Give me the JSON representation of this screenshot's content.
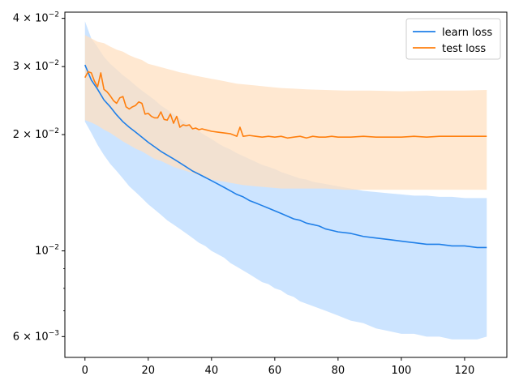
{
  "chart_data": {
    "type": "line",
    "title": "",
    "xlabel": "",
    "ylabel": "",
    "yscale": "log",
    "xlim": [
      -6.35,
      133.35
    ],
    "ylim": [
      0.0053,
      0.0415
    ],
    "xticks": [
      0,
      20,
      40,
      60,
      80,
      100,
      120
    ],
    "xtick_labels": [
      "0",
      "20",
      "40",
      "60",
      "80",
      "100",
      "120"
    ],
    "yticks": [
      {
        "value": 0.04,
        "mantissa": "4",
        "base": "10",
        "exp": "-2"
      },
      {
        "value": 0.03,
        "mantissa": "3",
        "base": "10",
        "exp": "-2"
      },
      {
        "value": 0.02,
        "mantissa": "2",
        "base": "10",
        "exp": "-2"
      },
      {
        "value": 0.01,
        "mantissa": "",
        "base": "10",
        "exp": "-2"
      },
      {
        "value": 0.006,
        "mantissa": "6",
        "base": "10",
        "exp": "-3"
      }
    ],
    "grid": false,
    "legend": {
      "placement": "top-right"
    },
    "series": [
      {
        "name": "learn loss",
        "color": "#1f7fe8",
        "band_color": "#cce4ff",
        "points": [
          [
            0,
            0.0303
          ],
          [
            2,
            0.0277
          ],
          [
            4,
            0.0262
          ],
          [
            6,
            0.0246
          ],
          [
            8,
            0.0236
          ],
          [
            10,
            0.0225
          ],
          [
            12,
            0.0216
          ],
          [
            14,
            0.0209
          ],
          [
            16,
            0.0203
          ],
          [
            18,
            0.0197
          ],
          [
            20,
            0.0191
          ],
          [
            22,
            0.0186
          ],
          [
            24,
            0.0181
          ],
          [
            26,
            0.0177
          ],
          [
            28,
            0.0173
          ],
          [
            30,
            0.0169
          ],
          [
            32,
            0.0165
          ],
          [
            34,
            0.0161
          ],
          [
            36,
            0.0158
          ],
          [
            38,
            0.0155
          ],
          [
            40,
            0.0152
          ],
          [
            42,
            0.0149
          ],
          [
            44,
            0.0146
          ],
          [
            46,
            0.0143
          ],
          [
            48,
            0.014
          ],
          [
            50,
            0.0138
          ],
          [
            52,
            0.0135
          ],
          [
            54,
            0.0133
          ],
          [
            56,
            0.0131
          ],
          [
            58,
            0.0129
          ],
          [
            60,
            0.0127
          ],
          [
            62,
            0.0125
          ],
          [
            64,
            0.0123
          ],
          [
            66,
            0.0121
          ],
          [
            68,
            0.012
          ],
          [
            70,
            0.0118
          ],
          [
            72,
            0.0117
          ],
          [
            74,
            0.0116
          ],
          [
            76,
            0.0114
          ],
          [
            78,
            0.0113
          ],
          [
            80,
            0.0112
          ],
          [
            84,
            0.0111
          ],
          [
            88,
            0.0109
          ],
          [
            92,
            0.0108
          ],
          [
            96,
            0.0107
          ],
          [
            100,
            0.0106
          ],
          [
            104,
            0.0105
          ],
          [
            108,
            0.0104
          ],
          [
            112,
            0.0104
          ],
          [
            116,
            0.0103
          ],
          [
            120,
            0.0103
          ],
          [
            124,
            0.0102
          ],
          [
            127,
            0.0102
          ]
        ],
        "upper": [
          [
            0,
            0.0393
          ],
          [
            2,
            0.0355
          ],
          [
            4,
            0.0337
          ],
          [
            6,
            0.0318
          ],
          [
            8,
            0.0305
          ],
          [
            10,
            0.0295
          ],
          [
            12,
            0.0285
          ],
          [
            14,
            0.0277
          ],
          [
            16,
            0.0268
          ],
          [
            18,
            0.026
          ],
          [
            20,
            0.0253
          ],
          [
            22,
            0.0246
          ],
          [
            24,
            0.0238
          ],
          [
            26,
            0.0232
          ],
          [
            28,
            0.0226
          ],
          [
            30,
            0.022
          ],
          [
            32,
            0.0214
          ],
          [
            34,
            0.0209
          ],
          [
            36,
            0.0204
          ],
          [
            38,
            0.0199
          ],
          [
            40,
            0.0195
          ],
          [
            42,
            0.019
          ],
          [
            44,
            0.0186
          ],
          [
            46,
            0.0183
          ],
          [
            48,
            0.0179
          ],
          [
            50,
            0.0176
          ],
          [
            52,
            0.0173
          ],
          [
            54,
            0.017
          ],
          [
            56,
            0.0167
          ],
          [
            58,
            0.0165
          ],
          [
            60,
            0.0163
          ],
          [
            62,
            0.016
          ],
          [
            64,
            0.0158
          ],
          [
            66,
            0.0156
          ],
          [
            68,
            0.0154
          ],
          [
            70,
            0.0153
          ],
          [
            72,
            0.0151
          ],
          [
            74,
            0.015
          ],
          [
            76,
            0.0149
          ],
          [
            78,
            0.0148
          ],
          [
            80,
            0.0147
          ],
          [
            84,
            0.0145
          ],
          [
            88,
            0.0143
          ],
          [
            92,
            0.0142
          ],
          [
            96,
            0.0141
          ],
          [
            100,
            0.014
          ],
          [
            104,
            0.0139
          ],
          [
            108,
            0.0139
          ],
          [
            112,
            0.0138
          ],
          [
            116,
            0.0138
          ],
          [
            120,
            0.0137
          ],
          [
            124,
            0.0137
          ],
          [
            127,
            0.0137
          ]
        ],
        "lower": [
          [
            0,
            0.0216
          ],
          [
            2,
            0.0202
          ],
          [
            4,
            0.0188
          ],
          [
            6,
            0.0177
          ],
          [
            8,
            0.0168
          ],
          [
            10,
            0.0161
          ],
          [
            12,
            0.0154
          ],
          [
            14,
            0.0147
          ],
          [
            16,
            0.0142
          ],
          [
            18,
            0.0137
          ],
          [
            20,
            0.0132
          ],
          [
            22,
            0.0128
          ],
          [
            24,
            0.0124
          ],
          [
            26,
            0.012
          ],
          [
            28,
            0.0117
          ],
          [
            30,
            0.0114
          ],
          [
            32,
            0.0111
          ],
          [
            34,
            0.0108
          ],
          [
            36,
            0.0105
          ],
          [
            38,
            0.0103
          ],
          [
            40,
            0.01
          ],
          [
            42,
            0.0098
          ],
          [
            44,
            0.0096
          ],
          [
            46,
            0.0093
          ],
          [
            48,
            0.0091
          ],
          [
            50,
            0.0089
          ],
          [
            52,
            0.0087
          ],
          [
            54,
            0.0085
          ],
          [
            56,
            0.0083
          ],
          [
            58,
            0.0082
          ],
          [
            60,
            0.008
          ],
          [
            62,
            0.0079
          ],
          [
            64,
            0.0077
          ],
          [
            66,
            0.0076
          ],
          [
            68,
            0.0074
          ],
          [
            70,
            0.0073
          ],
          [
            72,
            0.0072
          ],
          [
            74,
            0.0071
          ],
          [
            76,
            0.007
          ],
          [
            78,
            0.0069
          ],
          [
            80,
            0.0068
          ],
          [
            84,
            0.0066
          ],
          [
            88,
            0.0065
          ],
          [
            92,
            0.0063
          ],
          [
            96,
            0.0062
          ],
          [
            100,
            0.0061
          ],
          [
            104,
            0.0061
          ],
          [
            108,
            0.006
          ],
          [
            112,
            0.006
          ],
          [
            116,
            0.0059
          ],
          [
            120,
            0.0059
          ],
          [
            124,
            0.0059
          ],
          [
            127,
            0.006
          ]
        ]
      },
      {
        "name": "test loss",
        "color": "#ff7f0e",
        "band_color": "#ffe0c2",
        "points": [
          [
            0,
            0.0281
          ],
          [
            1,
            0.0291
          ],
          [
            2,
            0.0289
          ],
          [
            3,
            0.0275
          ],
          [
            4,
            0.0266
          ],
          [
            5,
            0.0289
          ],
          [
            6,
            0.0262
          ],
          [
            7,
            0.0258
          ],
          [
            8,
            0.0252
          ],
          [
            9,
            0.0245
          ],
          [
            10,
            0.0241
          ],
          [
            11,
            0.0249
          ],
          [
            12,
            0.0251
          ],
          [
            13,
            0.0236
          ],
          [
            14,
            0.0233
          ],
          [
            15,
            0.0236
          ],
          [
            16,
            0.0238
          ],
          [
            17,
            0.0243
          ],
          [
            18,
            0.0241
          ],
          [
            19,
            0.0226
          ],
          [
            20,
            0.0227
          ],
          [
            21,
            0.0223
          ],
          [
            22,
            0.0221
          ],
          [
            23,
            0.0221
          ],
          [
            24,
            0.0229
          ],
          [
            25,
            0.0219
          ],
          [
            26,
            0.0218
          ],
          [
            27,
            0.0226
          ],
          [
            28,
            0.0214
          ],
          [
            29,
            0.0223
          ],
          [
            30,
            0.0209
          ],
          [
            31,
            0.0212
          ],
          [
            32,
            0.0211
          ],
          [
            33,
            0.0212
          ],
          [
            34,
            0.0207
          ],
          [
            35,
            0.0208
          ],
          [
            36,
            0.0206
          ],
          [
            37,
            0.0207
          ],
          [
            38,
            0.0206
          ],
          [
            40,
            0.0204
          ],
          [
            42,
            0.0203
          ],
          [
            44,
            0.0202
          ],
          [
            46,
            0.0201
          ],
          [
            48,
            0.0198
          ],
          [
            49,
            0.0209
          ],
          [
            50,
            0.0198
          ],
          [
            52,
            0.0199
          ],
          [
            54,
            0.0198
          ],
          [
            56,
            0.0197
          ],
          [
            58,
            0.0198
          ],
          [
            60,
            0.0197
          ],
          [
            62,
            0.0198
          ],
          [
            64,
            0.0196
          ],
          [
            66,
            0.0197
          ],
          [
            68,
            0.0198
          ],
          [
            70,
            0.0196
          ],
          [
            72,
            0.0198
          ],
          [
            74,
            0.0197
          ],
          [
            76,
            0.0197
          ],
          [
            78,
            0.0198
          ],
          [
            80,
            0.0197
          ],
          [
            84,
            0.0197
          ],
          [
            88,
            0.0198
          ],
          [
            92,
            0.0197
          ],
          [
            96,
            0.0197
          ],
          [
            100,
            0.0197
          ],
          [
            104,
            0.0198
          ],
          [
            108,
            0.0197
          ],
          [
            112,
            0.0198
          ],
          [
            116,
            0.0198
          ],
          [
            120,
            0.0198
          ],
          [
            124,
            0.0198
          ],
          [
            127,
            0.0198
          ]
        ],
        "upper": [
          [
            0,
            0.0362
          ],
          [
            2,
            0.0355
          ],
          [
            4,
            0.0348
          ],
          [
            6,
            0.0345
          ],
          [
            8,
            0.0338
          ],
          [
            10,
            0.0332
          ],
          [
            12,
            0.0328
          ],
          [
            14,
            0.0321
          ],
          [
            16,
            0.0316
          ],
          [
            18,
            0.0312
          ],
          [
            20,
            0.0305
          ],
          [
            22,
            0.0302
          ],
          [
            24,
            0.0299
          ],
          [
            26,
            0.0296
          ],
          [
            28,
            0.0293
          ],
          [
            30,
            0.029
          ],
          [
            32,
            0.0288
          ],
          [
            34,
            0.0285
          ],
          [
            36,
            0.0283
          ],
          [
            38,
            0.0281
          ],
          [
            40,
            0.0279
          ],
          [
            42,
            0.0277
          ],
          [
            44,
            0.0275
          ],
          [
            46,
            0.0273
          ],
          [
            48,
            0.0271
          ],
          [
            50,
            0.027
          ],
          [
            54,
            0.0268
          ],
          [
            58,
            0.0266
          ],
          [
            62,
            0.0264
          ],
          [
            66,
            0.0263
          ],
          [
            70,
            0.0262
          ],
          [
            76,
            0.0261
          ],
          [
            82,
            0.026
          ],
          [
            90,
            0.026
          ],
          [
            100,
            0.0259
          ],
          [
            110,
            0.026
          ],
          [
            120,
            0.026
          ],
          [
            127,
            0.0261
          ]
        ],
        "lower": [
          [
            0,
            0.0218
          ],
          [
            2,
            0.0215
          ],
          [
            4,
            0.0211
          ],
          [
            6,
            0.0206
          ],
          [
            8,
            0.0202
          ],
          [
            10,
            0.0197
          ],
          [
            12,
            0.0192
          ],
          [
            14,
            0.0188
          ],
          [
            16,
            0.0184
          ],
          [
            18,
            0.0181
          ],
          [
            20,
            0.0177
          ],
          [
            22,
            0.0173
          ],
          [
            24,
            0.0171
          ],
          [
            26,
            0.0168
          ],
          [
            28,
            0.0165
          ],
          [
            30,
            0.0163
          ],
          [
            32,
            0.0161
          ],
          [
            34,
            0.0159
          ],
          [
            36,
            0.0157
          ],
          [
            38,
            0.0155
          ],
          [
            40,
            0.0153
          ],
          [
            42,
            0.0152
          ],
          [
            44,
            0.0151
          ],
          [
            46,
            0.015
          ],
          [
            48,
            0.0149
          ],
          [
            50,
            0.0148
          ],
          [
            54,
            0.0147
          ],
          [
            58,
            0.0146
          ],
          [
            62,
            0.0145
          ],
          [
            66,
            0.0145
          ],
          [
            70,
            0.0145
          ],
          [
            76,
            0.0145
          ],
          [
            82,
            0.0144
          ],
          [
            90,
            0.0144
          ],
          [
            100,
            0.0144
          ],
          [
            110,
            0.0144
          ],
          [
            120,
            0.0144
          ],
          [
            127,
            0.0144
          ]
        ]
      }
    ]
  }
}
